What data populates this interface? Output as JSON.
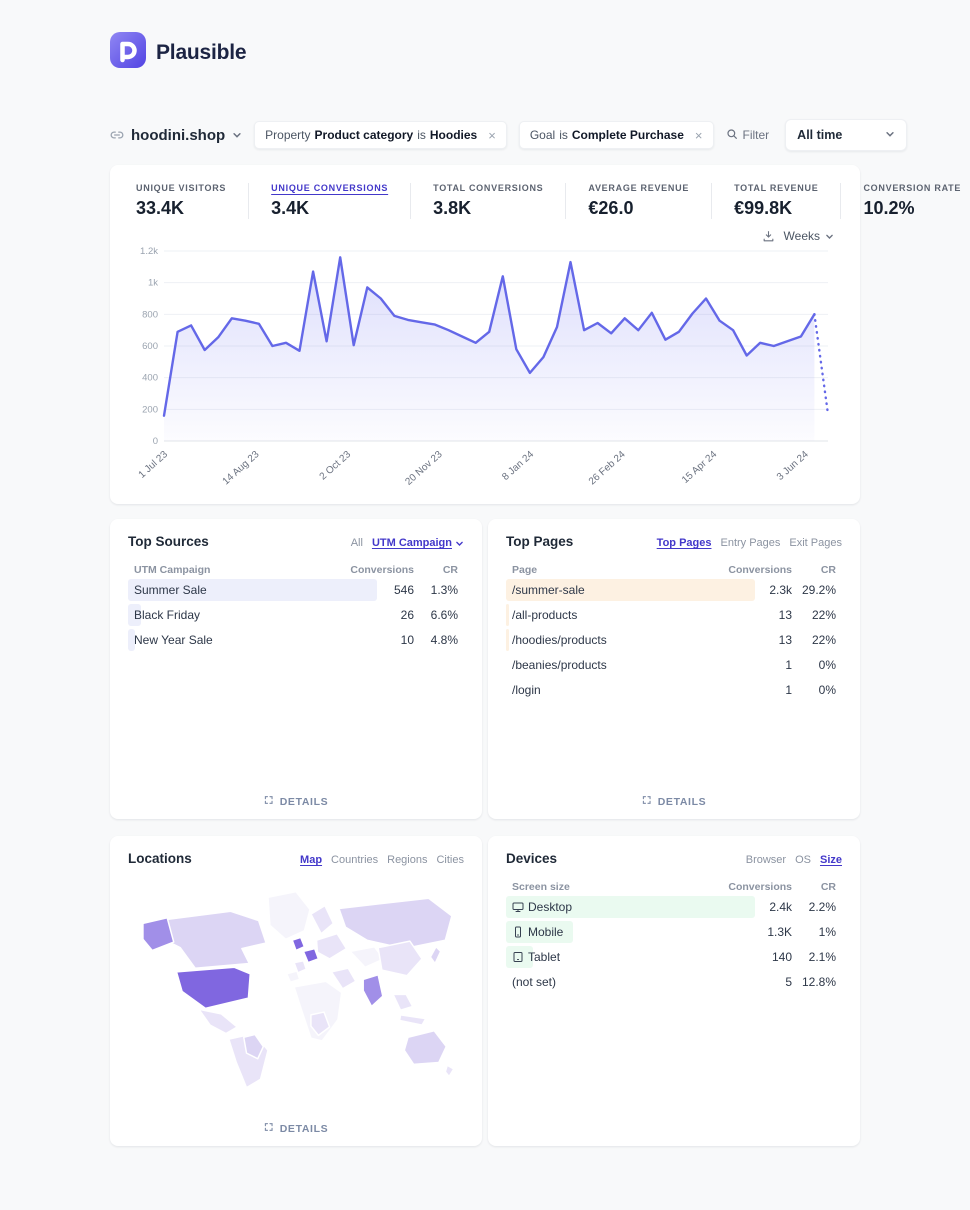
{
  "brand": {
    "name": "Plausible",
    "accent": "#5850ec"
  },
  "filter_bar": {
    "site_name": "hoodini.shop",
    "pills": [
      {
        "prefix": "Property",
        "subject": "Product category",
        "operator": "is",
        "value": "Hoodies",
        "close": "×"
      },
      {
        "prefix": "Goal",
        "operator": "is",
        "value": "Complete Purchase",
        "close": "×"
      }
    ],
    "filter_label": "Filter",
    "date_range_value": "All time"
  },
  "stats": [
    {
      "label": "Unique visitors",
      "value": "33.4K"
    },
    {
      "label": "Unique conversions",
      "value": "3.4K"
    },
    {
      "label": "Total conversions",
      "value": "3.8K"
    },
    {
      "label": "Average revenue",
      "value": "€26.0"
    },
    {
      "label": "Total revenue",
      "value": "€99.8K"
    },
    {
      "label": "Conversion rate",
      "value": "10.2%"
    }
  ],
  "chart_controls": {
    "interval": "Weeks"
  },
  "chart_data": {
    "type": "area",
    "series_name": "Unique conversions",
    "x_tick_labels": [
      "1 Jul 23",
      "14 Aug 23",
      "2 Oct 23",
      "20 Nov 23",
      "8 Jan 24",
      "26 Feb 24",
      "15 Apr 24",
      "3 Jun 24"
    ],
    "y_ticks": [
      0,
      200,
      400,
      600,
      800,
      1000,
      1200
    ],
    "y_tick_labels": [
      "0",
      "200",
      "400",
      "600",
      "800",
      "1k",
      "1.2k"
    ],
    "ylim": [
      0,
      1200
    ],
    "grid": true,
    "line_color": "#6468e8",
    "values": [
      160,
      690,
      730,
      575,
      655,
      775,
      760,
      740,
      600,
      620,
      570,
      1070,
      630,
      1160,
      605,
      970,
      900,
      790,
      765,
      750,
      735,
      700,
      660,
      620,
      690,
      1040,
      580,
      430,
      530,
      720,
      1130,
      700,
      745,
      680,
      775,
      700,
      810,
      640,
      690,
      805,
      900,
      760,
      700,
      540,
      620,
      600,
      630,
      660,
      800,
      170
    ],
    "dashed_from_index": 48
  },
  "top_sources": {
    "title": "Top Sources",
    "tabs": [
      {
        "label": "All",
        "active": false
      },
      {
        "label": "UTM Campaign",
        "active": true
      }
    ],
    "columns": {
      "name": "UTM Campaign",
      "conversions": "Conversions",
      "cr": "CR"
    },
    "rows": [
      {
        "name": "Summer Sale",
        "conversions": "546",
        "cr": "1.3%",
        "bar_pct": 74
      },
      {
        "name": "Black Friday",
        "conversions": "26",
        "cr": "6.6%",
        "bar_pct": 4
      },
      {
        "name": "New Year Sale",
        "conversions": "10",
        "cr": "4.8%",
        "bar_pct": 2
      }
    ],
    "details_label": "DETAILS"
  },
  "top_pages": {
    "title": "Top Pages",
    "tabs": [
      {
        "label": "Top Pages",
        "active": true
      },
      {
        "label": "Entry Pages",
        "active": false
      },
      {
        "label": "Exit Pages",
        "active": false
      }
    ],
    "columns": {
      "name": "Page",
      "conversions": "Conversions",
      "cr": "CR"
    },
    "rows": [
      {
        "name": "/summer-sale",
        "conversions": "2.3k",
        "cr": "29.2%",
        "bar_pct": 74
      },
      {
        "name": "/all-products",
        "conversions": "13",
        "cr": "22%",
        "bar_pct": 1
      },
      {
        "name": "/hoodies/products",
        "conversions": "13",
        "cr": "22%",
        "bar_pct": 1
      },
      {
        "name": "/beanies/products",
        "conversions": "1",
        "cr": "0%",
        "bar_pct": 0
      },
      {
        "name": "/login",
        "conversions": "1",
        "cr": "0%",
        "bar_pct": 0
      }
    ],
    "details_label": "DETAILS"
  },
  "locations": {
    "title": "Locations",
    "tabs": [
      {
        "label": "Map",
        "active": true
      },
      {
        "label": "Countries",
        "active": false
      },
      {
        "label": "Regions",
        "active": false
      },
      {
        "label": "Cities",
        "active": false
      }
    ],
    "details_label": "DETAILS"
  },
  "devices": {
    "title": "Devices",
    "tabs": [
      {
        "label": "Browser",
        "active": false
      },
      {
        "label": "OS",
        "active": false
      },
      {
        "label": "Size",
        "active": true
      }
    ],
    "columns": {
      "name": "Screen size",
      "conversions": "Conversions",
      "cr": "CR"
    },
    "rows": [
      {
        "icon": "desktop",
        "name": "Desktop",
        "conversions": "2.4k",
        "cr": "2.2%",
        "bar_pct": 74
      },
      {
        "icon": "mobile",
        "name": "Mobile",
        "conversions": "1.3K",
        "cr": "1%",
        "bar_pct": 20
      },
      {
        "icon": "tablet",
        "name": "Tablet",
        "conversions": "140",
        "cr": "2.1%",
        "bar_pct": 8
      },
      {
        "icon": "",
        "name": "(not set)",
        "conversions": "5",
        "cr": "12.8%",
        "bar_pct": 0
      }
    ]
  }
}
